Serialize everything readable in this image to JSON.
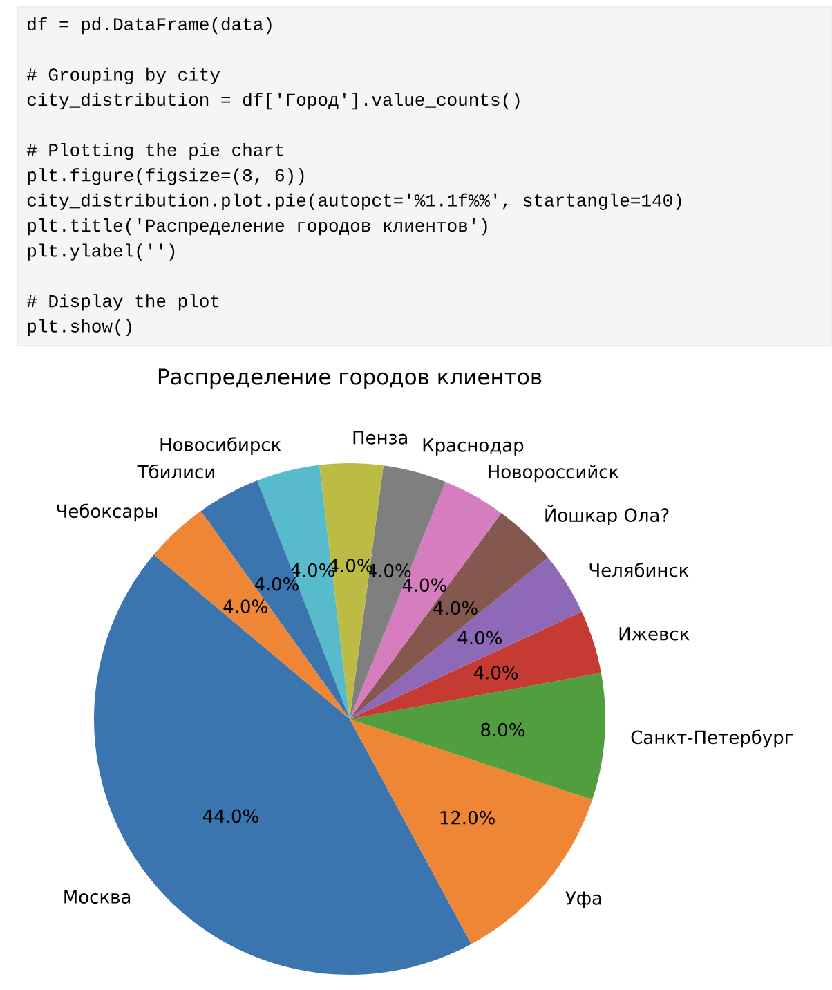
{
  "chart_data": {
    "type": "pie",
    "title": "Распределение городов клиентов",
    "categories": [
      "Москва",
      "Уфа",
      "Санкт-Петербург",
      "Ижевск",
      "Челябинск",
      "Йошкар Ола?",
      "Новороссийск",
      "Краснодар",
      "Пенза",
      "Новосибирск",
      "Тбилиси",
      "Чебоксары"
    ],
    "values": [
      44,
      12,
      8,
      4,
      4,
      4,
      4,
      4,
      4,
      4,
      4,
      4
    ],
    "value_labels": [
      "44.0%",
      "12.0%",
      "8.0%",
      "4.0%",
      "4.0%",
      "4.0%",
      "4.0%",
      "4.0%",
      "4.0%",
      "4.0%",
      "4.0%",
      "4.0%"
    ],
    "colors": [
      "#3b75af",
      "#ef8636",
      "#519e3e",
      "#c53a32",
      "#8d69b8",
      "#84584e",
      "#d57dbf",
      "#7f7f7f",
      "#bcbc45",
      "#58bbcc",
      "#3b75af",
      "#ef8636"
    ],
    "annotations": [
      "df = pd.DataFrame(data)",
      "# Grouping by city",
      "city_distribution = df['Город'].value_counts()",
      "# Plotting the pie chart",
      "plt.figure(figsize=(8, 6))",
      "city_distribution.plot.pie(autopct='%1.1f%%', startangle=140)",
      "plt.title('Распределение городов клиентов')",
      "plt.ylabel('')",
      "# Display the plot",
      "plt.show()"
    ]
  }
}
